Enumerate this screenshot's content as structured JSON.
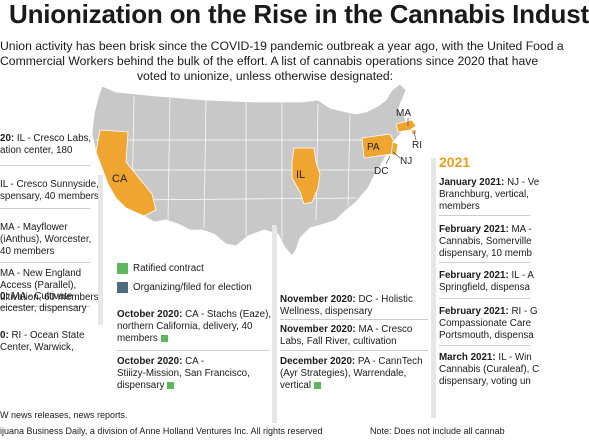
{
  "title": "Unionization on the Rise in the Cannabis Indust",
  "subtitle_lines": [
    "Union activity has been brisk since the COVID-19 pandemic outbreak a year ago, with the United Food a",
    "Commercial Workers behind the bulk of the effort. A list of cannabis operations since 2020 that have",
    "voted to unionize, unless otherwise designated:"
  ],
  "map_labels": {
    "ca": "CA",
    "il": "IL",
    "pa": "PA",
    "ma": "MA",
    "ri": "RI",
    "nj": "NJ",
    "dc": "DC"
  },
  "colors": {
    "highlight": "#f0a530",
    "map_gray": "#c8c8c8",
    "ratified": "#5cb85c",
    "organizing": "#4f6b80",
    "year": "#e8a020"
  },
  "legend": {
    "ratified": "Ratified contract",
    "organizing": "Organizing/filed for election"
  },
  "left_entries": [
    {
      "date": "20:",
      "lines": [
        "IL - Cresco Labs,",
        "ation center, 180"
      ]
    },
    {
      "date": "",
      "lines": [
        "IL - Cresco Sunnyside,",
        "spensary, 40 members"
      ]
    },
    {
      "date": "",
      "lines": [
        "MA - Mayflower",
        "(iAnthus), Worcester,",
        "40 members"
      ]
    },
    {
      "date": "",
      "lines": [
        "MA - New England",
        "Access (Parallel),",
        "ultivation, 60 members"
      ]
    },
    {
      "date": "0:",
      "lines": [
        "MA - Cultivate",
        "eicester, dispensary"
      ]
    },
    {
      "date": "0:",
      "lines": [
        "RI - Ocean State",
        "Center, Warwick,"
      ]
    }
  ],
  "middle_entries": [
    {
      "date": "October 2020:",
      "lines": [
        "CA - Stachs (Eaze),",
        "northern California, delivery, 40",
        "members"
      ]
    },
    {
      "date": "October 2020:",
      "lines": [
        "CA -",
        "Stiiizy-Mission, San Francisco,",
        "dispensary"
      ]
    }
  ],
  "right_mid_entries": [
    {
      "date": "November 2020:",
      "lines": [
        "DC - Holistic",
        "Wellness, dispensary"
      ]
    },
    {
      "date": "November 2020:",
      "lines": [
        "MA - Cresco",
        "Labs, Fall River, cultivation"
      ]
    },
    {
      "date": "December 2020:",
      "lines": [
        "PA - CannTech",
        "(Ayr Strategies), Warrendale,",
        "vertical"
      ]
    }
  ],
  "year_2021": "2021",
  "right_entries": [
    {
      "date": "January 2021:",
      "lines": [
        "NJ - Ve",
        "Branchburg, vertical,",
        "members"
      ]
    },
    {
      "date": "February 2021:",
      "lines": [
        "MA -",
        "Cannabis, Somerville",
        "dispensary, 10 memb"
      ]
    },
    {
      "date": "February 2021:",
      "lines": [
        "IL - A",
        "Springfield, dispensa"
      ]
    },
    {
      "date": "February 2021:",
      "lines": [
        "RI - G",
        "Compassionate Care",
        "Portsmouth, dispensa"
      ]
    },
    {
      "date": "March 2021:",
      "lines": [
        "IL - Win",
        "Cannabis (Curaleaf), C",
        "dispensary, voting un"
      ]
    }
  ],
  "footer": {
    "source": "W news releases, news reports.",
    "credit": "ijuana Business Daily, a division of Anne Holland Ventures Inc. All rights reserved",
    "note": "Note: Does not include all cannab"
  }
}
